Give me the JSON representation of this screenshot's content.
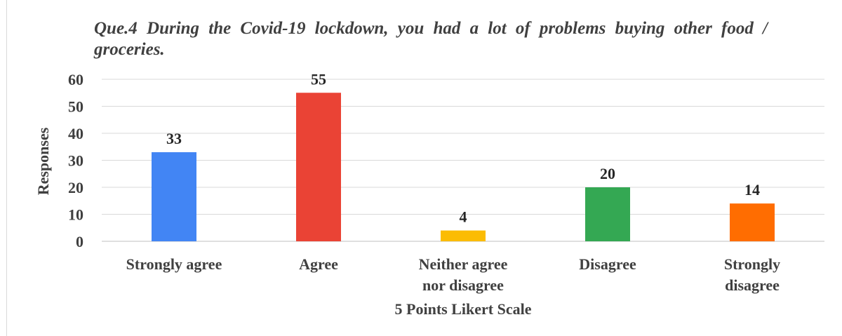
{
  "chart_data": {
    "type": "bar",
    "title": "Que.4 During the Covid-19 lockdown, you had a lot of problems buying other food / groceries.",
    "xlabel": "5 Points Likert Scale",
    "ylabel": "Responses",
    "ylim": [
      0,
      60
    ],
    "yticks": [
      0,
      10,
      20,
      30,
      40,
      50,
      60
    ],
    "grid": true,
    "legend": "none",
    "categories": [
      [
        "Strongly agree"
      ],
      [
        "Agree"
      ],
      [
        "Neither agree",
        "nor disagree"
      ],
      [
        "Disagree"
      ],
      [
        "Strongly",
        "disagree"
      ]
    ],
    "values": [
      33,
      55,
      4,
      20,
      14
    ],
    "colors": [
      "#4285f4",
      "#ea4335",
      "#fbbc04",
      "#34a853",
      "#ff6d01"
    ]
  }
}
